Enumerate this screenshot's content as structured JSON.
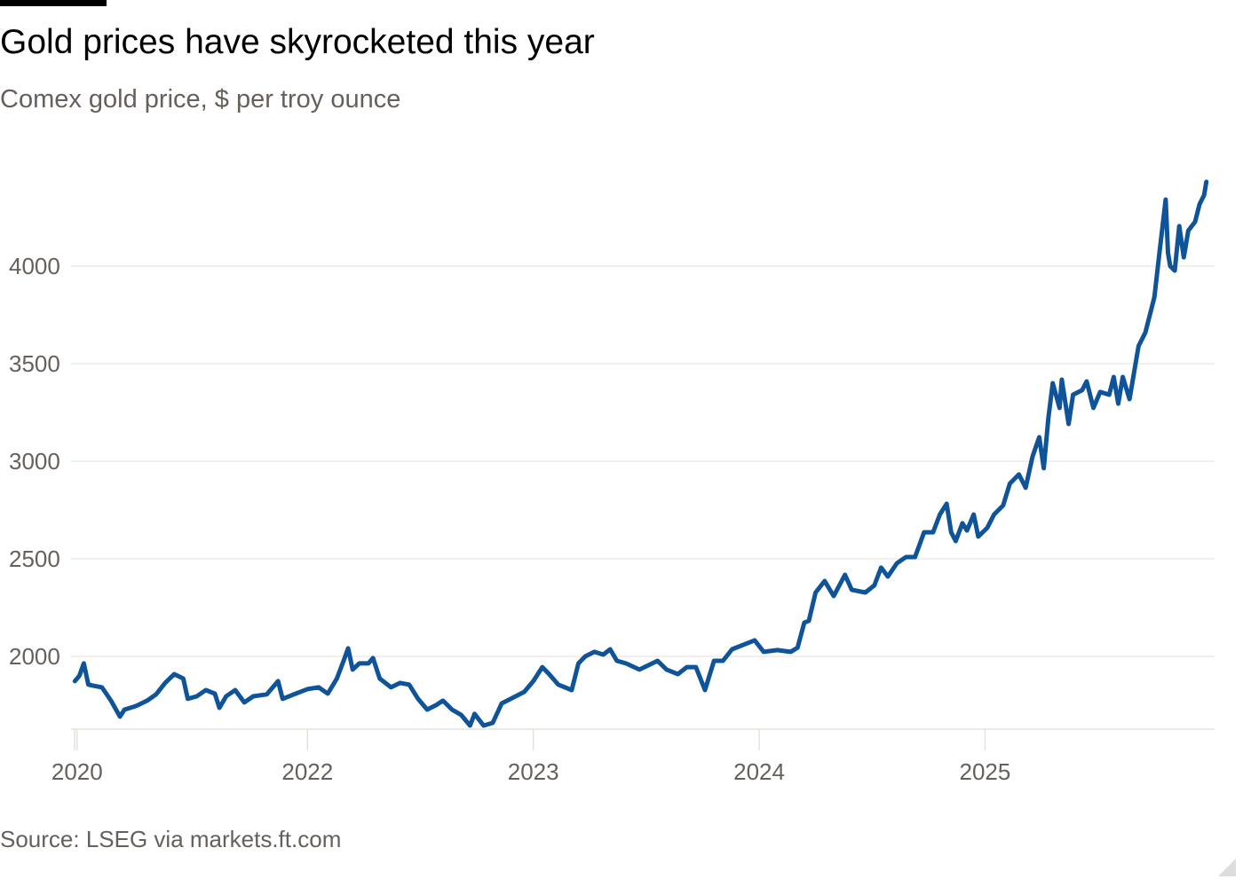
{
  "chart_data": {
    "type": "line",
    "title": "Gold prices have skyrocketed this year",
    "subtitle": "Comex gold price, $ per troy ounce",
    "source": "Source: LSEG via markets.ft.com",
    "xlabel": "",
    "ylabel": "",
    "xlim": [
      2020.965,
      2025.985
    ],
    "ylim": [
      1627,
      4432
    ],
    "grid": true,
    "legend": "none",
    "line_color": "#0f5499",
    "y_ticks": [
      {
        "value": 2000,
        "label": "2000"
      },
      {
        "value": 2500,
        "label": "2500"
      },
      {
        "value": 3000,
        "label": "3000"
      },
      {
        "value": 3500,
        "label": "3500"
      },
      {
        "value": 4000,
        "label": "4000"
      }
    ],
    "x_ticks": [
      {
        "value": 2020.98,
        "label": "2020"
      },
      {
        "value": 2022.0,
        "label": "2022"
      },
      {
        "value": 2023.0,
        "label": "2023"
      },
      {
        "value": 2024.0,
        "label": "2024"
      },
      {
        "value": 2025.0,
        "label": "2025"
      }
    ],
    "series": [
      {
        "name": "Comex gold price",
        "points": [
          [
            2020.97,
            1873
          ],
          [
            2020.99,
            1900
          ],
          [
            2021.01,
            1964
          ],
          [
            2021.03,
            1855
          ],
          [
            2021.05,
            1850
          ],
          [
            2021.09,
            1841
          ],
          [
            2021.13,
            1773
          ],
          [
            2021.17,
            1691
          ],
          [
            2021.19,
            1727
          ],
          [
            2021.23,
            1741
          ],
          [
            2021.25,
            1750
          ],
          [
            2021.29,
            1773
          ],
          [
            2021.33,
            1805
          ],
          [
            2021.37,
            1864
          ],
          [
            2021.41,
            1909
          ],
          [
            2021.45,
            1886
          ],
          [
            2021.47,
            1782
          ],
          [
            2021.51,
            1795
          ],
          [
            2021.55,
            1827
          ],
          [
            2021.59,
            1809
          ],
          [
            2021.61,
            1736
          ],
          [
            2021.64,
            1795
          ],
          [
            2021.68,
            1827
          ],
          [
            2021.72,
            1764
          ],
          [
            2021.76,
            1795
          ],
          [
            2021.82,
            1805
          ],
          [
            2021.87,
            1873
          ],
          [
            2021.89,
            1782
          ],
          [
            2021.94,
            1805
          ],
          [
            2022.0,
            1832
          ],
          [
            2022.05,
            1841
          ],
          [
            2022.09,
            1809
          ],
          [
            2022.13,
            1886
          ],
          [
            2022.16,
            1977
          ],
          [
            2022.18,
            2041
          ],
          [
            2022.2,
            1932
          ],
          [
            2022.23,
            1964
          ],
          [
            2022.27,
            1964
          ],
          [
            2022.29,
            1991
          ],
          [
            2022.32,
            1886
          ],
          [
            2022.37,
            1841
          ],
          [
            2022.41,
            1864
          ],
          [
            2022.45,
            1855
          ],
          [
            2022.49,
            1782
          ],
          [
            2022.53,
            1727
          ],
          [
            2022.57,
            1750
          ],
          [
            2022.6,
            1773
          ],
          [
            2022.64,
            1727
          ],
          [
            2022.68,
            1700
          ],
          [
            2022.72,
            1645
          ],
          [
            2022.74,
            1705
          ],
          [
            2022.78,
            1645
          ],
          [
            2022.82,
            1659
          ],
          [
            2022.86,
            1759
          ],
          [
            2022.9,
            1782
          ],
          [
            2022.96,
            1818
          ],
          [
            2023.0,
            1873
          ],
          [
            2023.04,
            1945
          ],
          [
            2023.07,
            1909
          ],
          [
            2023.11,
            1855
          ],
          [
            2023.17,
            1827
          ],
          [
            2023.2,
            1964
          ],
          [
            2023.23,
            2000
          ],
          [
            2023.27,
            2023
          ],
          [
            2023.31,
            2009
          ],
          [
            2023.34,
            2036
          ],
          [
            2023.37,
            1977
          ],
          [
            2023.41,
            1964
          ],
          [
            2023.47,
            1932
          ],
          [
            2023.55,
            1977
          ],
          [
            2023.59,
            1932
          ],
          [
            2023.64,
            1909
          ],
          [
            2023.68,
            1945
          ],
          [
            2023.72,
            1945
          ],
          [
            2023.76,
            1827
          ],
          [
            2023.8,
            1977
          ],
          [
            2023.84,
            1977
          ],
          [
            2023.88,
            2036
          ],
          [
            2023.92,
            2055
          ],
          [
            2023.98,
            2082
          ],
          [
            2024.02,
            2023
          ],
          [
            2024.08,
            2032
          ],
          [
            2024.14,
            2023
          ],
          [
            2024.17,
            2045
          ],
          [
            2024.2,
            2173
          ],
          [
            2024.22,
            2182
          ],
          [
            2024.25,
            2327
          ],
          [
            2024.29,
            2386
          ],
          [
            2024.33,
            2309
          ],
          [
            2024.38,
            2418
          ],
          [
            2024.41,
            2341
          ],
          [
            2024.47,
            2327
          ],
          [
            2024.51,
            2364
          ],
          [
            2024.54,
            2455
          ],
          [
            2024.57,
            2409
          ],
          [
            2024.61,
            2477
          ],
          [
            2024.65,
            2509
          ],
          [
            2024.69,
            2509
          ],
          [
            2024.73,
            2636
          ],
          [
            2024.77,
            2636
          ],
          [
            2024.8,
            2727
          ],
          [
            2024.83,
            2782
          ],
          [
            2024.85,
            2636
          ],
          [
            2024.87,
            2591
          ],
          [
            2024.9,
            2682
          ],
          [
            2024.92,
            2645
          ],
          [
            2024.95,
            2727
          ],
          [
            2024.97,
            2614
          ],
          [
            2025.01,
            2659
          ],
          [
            2025.04,
            2727
          ],
          [
            2025.08,
            2773
          ],
          [
            2025.11,
            2886
          ],
          [
            2025.15,
            2932
          ],
          [
            2025.18,
            2864
          ],
          [
            2025.21,
            3023
          ],
          [
            2025.24,
            3123
          ],
          [
            2025.26,
            2964
          ],
          [
            2025.28,
            3218
          ],
          [
            2025.3,
            3400
          ],
          [
            2025.33,
            3273
          ],
          [
            2025.34,
            3418
          ],
          [
            2025.37,
            3191
          ],
          [
            2025.39,
            3341
          ],
          [
            2025.43,
            3364
          ],
          [
            2025.45,
            3409
          ],
          [
            2025.48,
            3273
          ],
          [
            2025.51,
            3355
          ],
          [
            2025.55,
            3341
          ],
          [
            2025.57,
            3432
          ],
          [
            2025.59,
            3295
          ],
          [
            2025.61,
            3432
          ],
          [
            2025.64,
            3318
          ],
          [
            2025.66,
            3455
          ],
          [
            2025.68,
            3591
          ],
          [
            2025.71,
            3659
          ],
          [
            2025.73,
            3750
          ],
          [
            2025.75,
            3841
          ],
          [
            2025.77,
            4045
          ],
          [
            2025.8,
            4341
          ],
          [
            2025.81,
            4068
          ],
          [
            2025.82,
            4000
          ],
          [
            2025.84,
            3977
          ],
          [
            2025.86,
            4205
          ],
          [
            2025.88,
            4045
          ],
          [
            2025.9,
            4182
          ],
          [
            2025.93,
            4227
          ],
          [
            2025.95,
            4318
          ],
          [
            2025.97,
            4364
          ],
          [
            2025.98,
            4432
          ]
        ]
      }
    ]
  }
}
